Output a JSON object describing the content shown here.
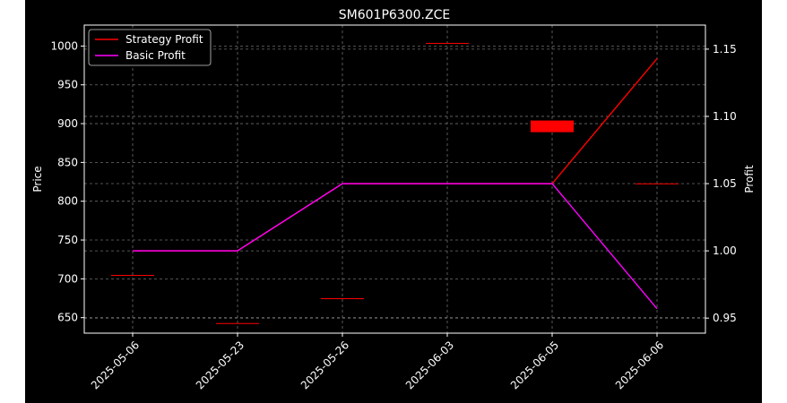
{
  "chart_data": {
    "type": "line",
    "title": "SM601P6300.ZCE",
    "categories": [
      "2025-05-06",
      "2025-05-23",
      "2025-05-26",
      "2025-06-03",
      "2025-06-05",
      "2025-06-06"
    ],
    "left_axis": {
      "label": "Price",
      "ylim": [
        630,
        1027
      ],
      "ticks": [
        650,
        700,
        750,
        800,
        850,
        900,
        950,
        1000
      ]
    },
    "right_axis": {
      "label": "Profit",
      "ylim": [
        0.9388,
        1.1679
      ],
      "ticks": [
        0.95,
        1.0,
        1.05,
        1.1,
        1.15
      ],
      "tick_labels": [
        "0.95",
        "1.00",
        "1.05",
        "1.10",
        "1.15"
      ]
    },
    "candles": [
      {
        "date": "2025-05-06",
        "open": 705,
        "close": 705
      },
      {
        "date": "2025-05-23",
        "open": 643,
        "close": 643
      },
      {
        "date": "2025-05-26",
        "open": 675,
        "close": 675
      },
      {
        "date": "2025-06-03",
        "open": 1004,
        "close": 1004
      },
      {
        "date": "2025-06-05",
        "open": 904,
        "close": 889
      },
      {
        "date": "2025-06-06",
        "open": 823,
        "close": 823
      }
    ],
    "series": [
      {
        "name": "Strategy Profit",
        "axis": "right",
        "color": "#ff0000",
        "values": [
          1.0,
          1.0,
          1.05,
          1.05,
          1.05,
          1.143
        ]
      },
      {
        "name": "Basic Profit",
        "axis": "right",
        "color": "#ff00ff",
        "values": [
          1.0,
          1.0,
          1.05,
          1.05,
          1.05,
          0.957
        ]
      }
    ],
    "candle_color": "#ff0000",
    "grid": true,
    "legend": "top-left",
    "background": "#000000",
    "foreground": "#ffffff"
  }
}
